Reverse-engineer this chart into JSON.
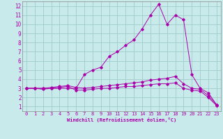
{
  "xlabel": "Windchill (Refroidissement éolien,°C)",
  "x_ticks": [
    0,
    1,
    2,
    3,
    4,
    5,
    6,
    7,
    8,
    9,
    10,
    11,
    12,
    13,
    14,
    15,
    16,
    17,
    18,
    19,
    20,
    21,
    22,
    23
  ],
  "y_ticks": [
    1,
    2,
    3,
    4,
    5,
    6,
    7,
    8,
    9,
    10,
    11,
    12
  ],
  "xlim": [
    -0.5,
    23.5
  ],
  "ylim": [
    0.5,
    12.5
  ],
  "bg_color": "#c8eaea",
  "line_color": "#aa00aa",
  "grid_color": "#a0cccc",
  "series": [
    {
      "x": [
        0,
        1,
        2,
        3,
        4,
        5,
        6,
        7,
        8,
        9,
        10,
        11,
        12,
        13,
        14,
        15,
        16,
        17,
        18,
        19,
        20,
        21,
        22,
        23
      ],
      "y": [
        3,
        3,
        3,
        3,
        3,
        3,
        3,
        4.5,
        5,
        5.3,
        6.5,
        7,
        7.7,
        8.3,
        9.5,
        11,
        12.2,
        10,
        11,
        10.5,
        4.5,
        3,
        2.5,
        1.2
      ]
    },
    {
      "x": [
        0,
        1,
        2,
        3,
        4,
        5,
        6,
        7,
        8,
        9,
        10,
        11,
        12,
        13,
        14,
        15,
        16,
        17,
        18,
        19,
        20,
        21,
        22,
        23
      ],
      "y": [
        3,
        3,
        3,
        3.1,
        3.2,
        3.3,
        3.1,
        3.0,
        3.1,
        3.2,
        3.3,
        3.4,
        3.5,
        3.6,
        3.7,
        3.9,
        4.0,
        4.1,
        4.3,
        3.5,
        3.0,
        2.9,
        2.2,
        1.2
      ]
    },
    {
      "x": [
        0,
        1,
        2,
        3,
        4,
        5,
        6,
        7,
        8,
        9,
        10,
        11,
        12,
        13,
        14,
        15,
        16,
        17,
        18,
        19,
        20,
        21,
        22,
        23
      ],
      "y": [
        3,
        3,
        2.9,
        3.0,
        3.1,
        3.2,
        2.8,
        2.8,
        2.9,
        3.0,
        3.0,
        3.1,
        3.2,
        3.2,
        3.3,
        3.4,
        3.5,
        3.5,
        3.6,
        3.0,
        2.8,
        2.7,
        2.0,
        1.1
      ]
    }
  ]
}
